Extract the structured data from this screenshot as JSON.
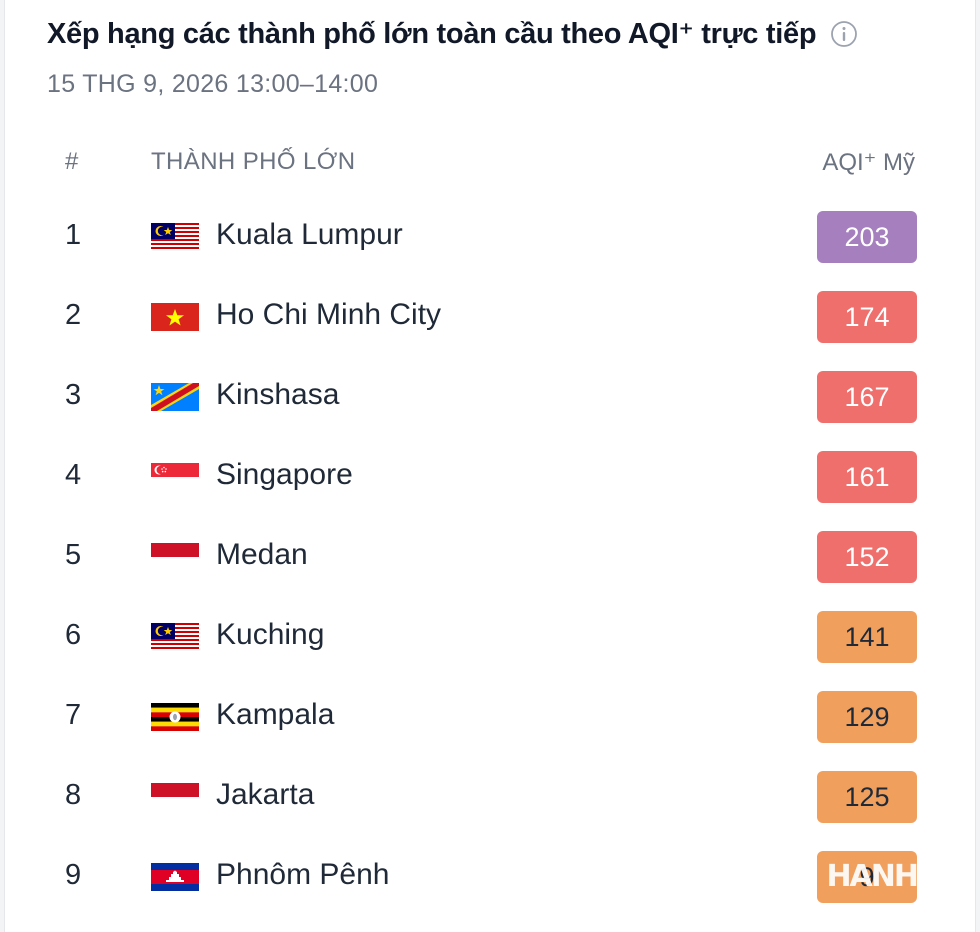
{
  "header": {
    "title": "Xếp hạng các thành phố lớn toàn cầu theo AQI⁺ trực tiếp",
    "subtitle": "15 THG 9, 2026 13:00–14:00"
  },
  "table": {
    "columns": {
      "rank": "#",
      "city": "THÀNH PHỐ LỚN",
      "aqi": "AQI⁺ Mỹ"
    },
    "rows": [
      {
        "rank": "1",
        "flag": "malaysia-flag-icon",
        "city": "Kuala Lumpur",
        "aqi": "203",
        "color": "#a57fbe"
      },
      {
        "rank": "2",
        "flag": "vietnam-flag-icon",
        "city": "Ho Chi Minh City",
        "aqi": "174",
        "color": "#ef6f6c"
      },
      {
        "rank": "3",
        "flag": "dr-congo-flag-icon",
        "city": "Kinshasa",
        "aqi": "167",
        "color": "#ef6f6c"
      },
      {
        "rank": "4",
        "flag": "singapore-flag-icon",
        "city": "Singapore",
        "aqi": "161",
        "color": "#ef6f6c"
      },
      {
        "rank": "5",
        "flag": "indonesia-flag-icon",
        "city": "Medan",
        "aqi": "152",
        "color": "#ef6f6c"
      },
      {
        "rank": "6",
        "flag": "malaysia-flag-icon",
        "city": "Kuching",
        "aqi": "141",
        "color": "#f19f5d"
      },
      {
        "rank": "7",
        "flag": "uganda-flag-icon",
        "city": "Kampala",
        "aqi": "129",
        "color": "#f19f5d"
      },
      {
        "rank": "8",
        "flag": "indonesia-flag-icon",
        "city": "Jakarta",
        "aqi": "125",
        "color": "#f19f5d"
      },
      {
        "rank": "9",
        "flag": "cambodia-flag-icon",
        "city": "Phnôm Pênh",
        "aqi": "9",
        "color": "#f19f5d"
      }
    ]
  },
  "watermark": "HANH NI"
}
